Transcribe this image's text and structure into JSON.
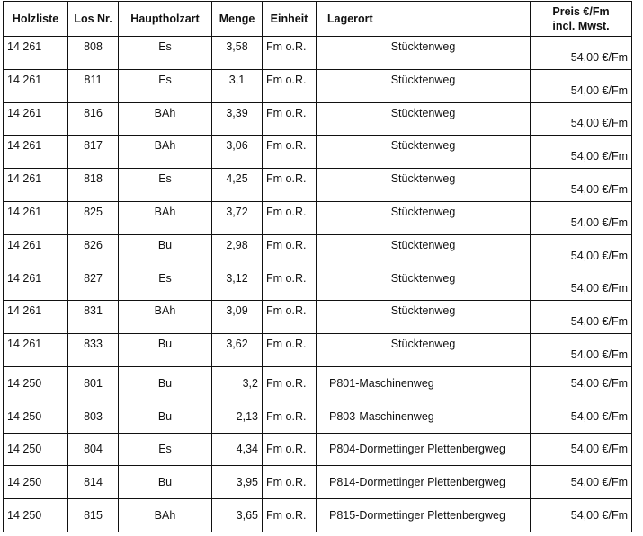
{
  "table": {
    "headers": {
      "holzliste": "Holzliste",
      "los_nr": "Los Nr.",
      "hauptholzart": "Hauptholzart",
      "menge": "Menge",
      "einheit": "Einheit",
      "lagerort": "Lagerort",
      "preis_line1": "Preis €/Fm",
      "preis_line2": "incl. Mwst."
    },
    "rows": [
      {
        "holzliste": "14 261",
        "los_nr": "808",
        "hauptholzart": "Es",
        "menge": "3,58",
        "einheit": "Fm o.R.",
        "lagerort": "Stücktenweg",
        "preis": "54,00 €/Fm"
      },
      {
        "holzliste": "14 261",
        "los_nr": "811",
        "hauptholzart": "Es",
        "menge": "3,1",
        "einheit": "Fm o.R.",
        "lagerort": "Stücktenweg",
        "preis": "54,00 €/Fm"
      },
      {
        "holzliste": "14 261",
        "los_nr": "816",
        "hauptholzart": "BAh",
        "menge": "3,39",
        "einheit": "Fm o.R.",
        "lagerort": "Stücktenweg",
        "preis": "54,00 €/Fm"
      },
      {
        "holzliste": "14 261",
        "los_nr": "817",
        "hauptholzart": "BAh",
        "menge": "3,06",
        "einheit": "Fm o.R.",
        "lagerort": "Stücktenweg",
        "preis": "54,00 €/Fm"
      },
      {
        "holzliste": "14 261",
        "los_nr": "818",
        "hauptholzart": "Es",
        "menge": "4,25",
        "einheit": "Fm o.R.",
        "lagerort": "Stücktenweg",
        "preis": "54,00 €/Fm"
      },
      {
        "holzliste": "14 261",
        "los_nr": "825",
        "hauptholzart": "BAh",
        "menge": "3,72",
        "einheit": "Fm o.R.",
        "lagerort": "Stücktenweg",
        "preis": "54,00 €/Fm"
      },
      {
        "holzliste": "14 261",
        "los_nr": "826",
        "hauptholzart": "Bu",
        "menge": "2,98",
        "einheit": "Fm o.R.",
        "lagerort": "Stücktenweg",
        "preis": "54,00 €/Fm"
      },
      {
        "holzliste": "14 261",
        "los_nr": "827",
        "hauptholzart": "Es",
        "menge": "3,12",
        "einheit": "Fm o.R.",
        "lagerort": "Stücktenweg",
        "preis": "54,00 €/Fm"
      },
      {
        "holzliste": "14 261",
        "los_nr": "831",
        "hauptholzart": "BAh",
        "menge": "3,09",
        "einheit": "Fm o.R.",
        "lagerort": "Stücktenweg",
        "preis": "54,00 €/Fm"
      },
      {
        "holzliste": "14 261",
        "los_nr": "833",
        "hauptholzart": "Bu",
        "menge": "3,62",
        "einheit": "Fm o.R.",
        "lagerort": "Stücktenweg",
        "preis": "54,00 €/Fm"
      },
      {
        "holzliste": "14 250",
        "los_nr": "801",
        "hauptholzart": "Bu",
        "menge": "3,2",
        "einheit": "Fm o.R.",
        "lagerort": "P801-Maschinenweg",
        "preis": "54,00 €/Fm"
      },
      {
        "holzliste": "14 250",
        "los_nr": "803",
        "hauptholzart": "Bu",
        "menge": "2,13",
        "einheit": "Fm o.R.",
        "lagerort": "P803-Maschinenweg",
        "preis": "54,00 €/Fm"
      },
      {
        "holzliste": "14 250",
        "los_nr": "804",
        "hauptholzart": "Es",
        "menge": "4,34",
        "einheit": "Fm o.R.",
        "lagerort": "P804-Dormettinger Plettenbergweg",
        "preis": "54,00 €/Fm"
      },
      {
        "holzliste": "14 250",
        "los_nr": "814",
        "hauptholzart": "Bu",
        "menge": "3,95",
        "einheit": "Fm o.R.",
        "lagerort": "P814-Dormettinger Plettenbergweg",
        "preis": "54,00 €/Fm"
      },
      {
        "holzliste": "14 250",
        "los_nr": "815",
        "hauptholzart": "BAh",
        "menge": "3,65",
        "einheit": "Fm o.R.",
        "lagerort": "P815-Dormettinger Plettenbergweg",
        "preis": "54,00 €/Fm"
      }
    ]
  }
}
